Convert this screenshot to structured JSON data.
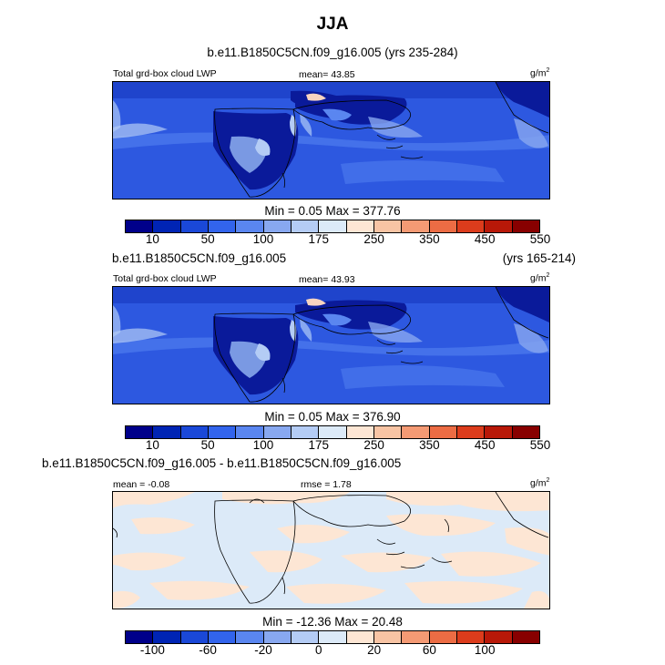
{
  "title": "JJA",
  "panel1": {
    "case_label": "b.e11.B1850C5CN.f09_g16.005 (yrs 235-284)",
    "left_label": "Total grd-box cloud LWP",
    "center_label": "mean=  43.85",
    "units_base": "g/m",
    "units_exp": "2",
    "minmax": "Min =   0.05 Max = 377.76"
  },
  "panel2": {
    "case_label": "b.e11.B1850C5CN.f09_g16.005",
    "years": "(yrs 165-214)",
    "left_label": "Total grd-box cloud LWP",
    "center_label": "mean=  43.93",
    "units_base": "g/m",
    "units_exp": "2",
    "minmax": "Min =   0.05 Max = 376.90"
  },
  "panel3": {
    "case_label": "b.e11.B1850C5CN.f09_g16.005 - b.e11.B1850C5CN.f09_g16.005",
    "left_label": "mean =  -0.08",
    "center_label": "rmse =   1.78",
    "units_base": "g/m",
    "units_exp": "2",
    "minmax": "Min = -12.36 Max =  20.48"
  },
  "colorbar_abs": {
    "colors": [
      "#00008a",
      "#0024b4",
      "#1a48d8",
      "#3264ec",
      "#5a86f0",
      "#88a8f0",
      "#b4ccf5",
      "#dceaf8",
      "#fde6d4",
      "#f8c4a4",
      "#f49a74",
      "#ec6c44",
      "#dc3c1c",
      "#b81808",
      "#880000"
    ],
    "labels": [
      "10",
      "50",
      "100",
      "175",
      "250",
      "350",
      "450",
      "550"
    ]
  },
  "colorbar_diff": {
    "colors": [
      "#00008a",
      "#0024b4",
      "#1a48d8",
      "#3264ec",
      "#5a86f0",
      "#88a8f0",
      "#b4ccf5",
      "#dceaf8",
      "#fde6d4",
      "#f8c4a4",
      "#f49a74",
      "#ec6c44",
      "#dc3c1c",
      "#b81808",
      "#880000"
    ],
    "labels": [
      "-100",
      "-60",
      "-20",
      "0",
      "20",
      "60",
      "100"
    ]
  },
  "map_colors": {
    "ocean_low": "#2d58e0",
    "ocean_mid": "#4a78ec",
    "land_dry": "#0a1a9a",
    "land_wet": "#8eb0f0",
    "max_hotspot": "#f8d4c0",
    "diff_pos": "#fde6d4",
    "diff_neg": "#dceaf8"
  }
}
